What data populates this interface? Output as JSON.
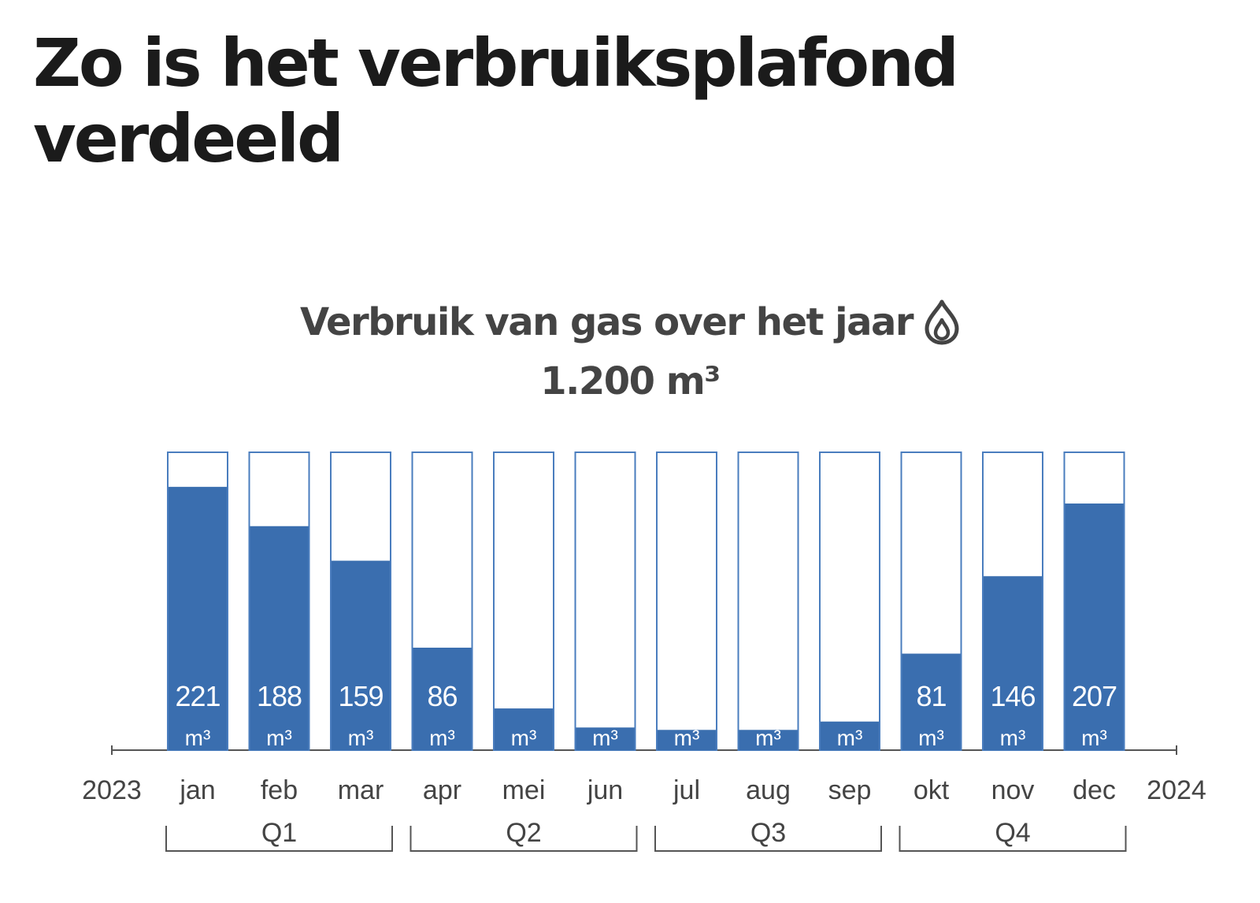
{
  "page": {
    "title": "Zo is het verbruiksplafond verdeeld"
  },
  "colors": {
    "bar_fill": "#3A6EAF",
    "bar_outline": "#4A7DBE",
    "text_dark": "#1b1b1b",
    "text_gray": "#444444",
    "axis": "#555555"
  },
  "chart_data": {
    "type": "bar",
    "title": "Verbruik van gas over het jaar",
    "title_icon": "flame-icon",
    "subtitle": "1.200 m³",
    "categories": [
      "jan",
      "feb",
      "mar",
      "apr",
      "mei",
      "jun",
      "jul",
      "aug",
      "sep",
      "okt",
      "nov",
      "dec"
    ],
    "values": [
      221,
      188,
      159,
      86,
      35,
      19,
      17,
      17,
      24,
      81,
      146,
      207
    ],
    "unit": "m³",
    "axis_start_label": "2023",
    "axis_end_label": "2024",
    "ylim": [
      0,
      250
    ],
    "grid": false,
    "legend": "none",
    "quarters": [
      {
        "label": "Q1",
        "months": [
          "jan",
          "feb",
          "mar"
        ]
      },
      {
        "label": "Q2",
        "months": [
          "apr",
          "mei",
          "jun"
        ]
      },
      {
        "label": "Q3",
        "months": [
          "jul",
          "aug",
          "sep"
        ]
      },
      {
        "label": "Q4",
        "months": [
          "okt",
          "nov",
          "dec"
        ]
      }
    ]
  }
}
